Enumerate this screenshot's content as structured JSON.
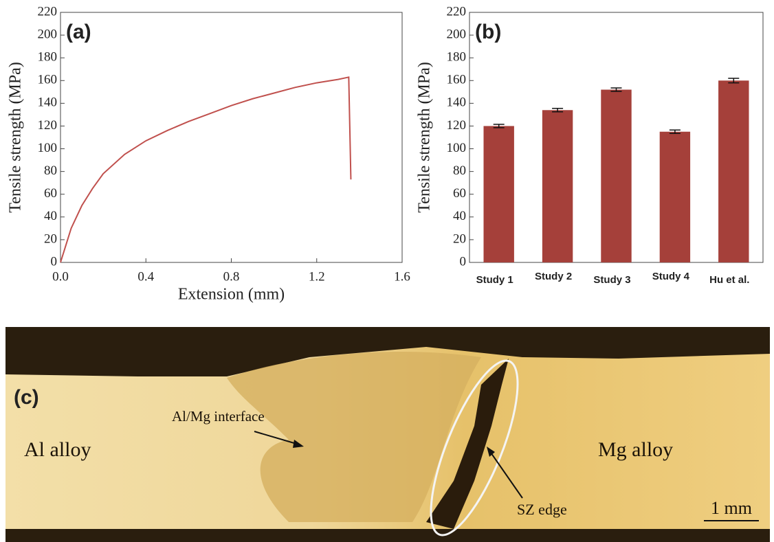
{
  "chart_data": [
    {
      "type": "line",
      "annotation": "(a)",
      "x_label": "Extension (mm)",
      "y_label": "Tensile strength (MPa)",
      "x": [
        0,
        0.02,
        0.05,
        0.1,
        0.15,
        0.2,
        0.3,
        0.4,
        0.5,
        0.6,
        0.7,
        0.8,
        0.9,
        1.0,
        1.1,
        1.2,
        1.3,
        1.35,
        1.36
      ],
      "values": [
        0,
        12,
        30,
        50,
        65,
        78,
        95,
        107,
        116,
        124,
        131,
        138,
        144,
        149,
        154,
        158,
        161,
        163,
        73
      ],
      "color": "#c0504d",
      "xlim": [
        0,
        1.6
      ],
      "xticks": [
        {
          "value": 0,
          "label": "0.0"
        },
        0.4,
        0.8,
        1.2,
        1.6
      ],
      "ylim": [
        0,
        220
      ],
      "yticks": [
        0,
        20,
        40,
        60,
        80,
        100,
        120,
        140,
        160,
        180,
        200,
        220
      ]
    },
    {
      "type": "bar",
      "annotation": "(b)",
      "y_label": "Tensile strength (MPa)",
      "categories": [
        "Study 1",
        "Study 2",
        "Study 3",
        "Study 4",
        "Hu et al."
      ],
      "values": [
        120,
        134,
        152,
        115,
        160
      ],
      "errors": [
        1.5,
        1.5,
        1.5,
        1.5,
        2
      ],
      "color": "#a5403a",
      "ylim": [
        0,
        220
      ],
      "yticks": [
        0,
        20,
        40,
        60,
        80,
        100,
        120,
        140,
        160,
        180,
        200,
        220
      ]
    }
  ],
  "micrograph": {
    "panel": "(c)",
    "interface": "Al/Mg interface",
    "left": "Al alloy",
    "right": "Mg alloy",
    "edge": "SZ edge",
    "scale": "1 mm"
  }
}
